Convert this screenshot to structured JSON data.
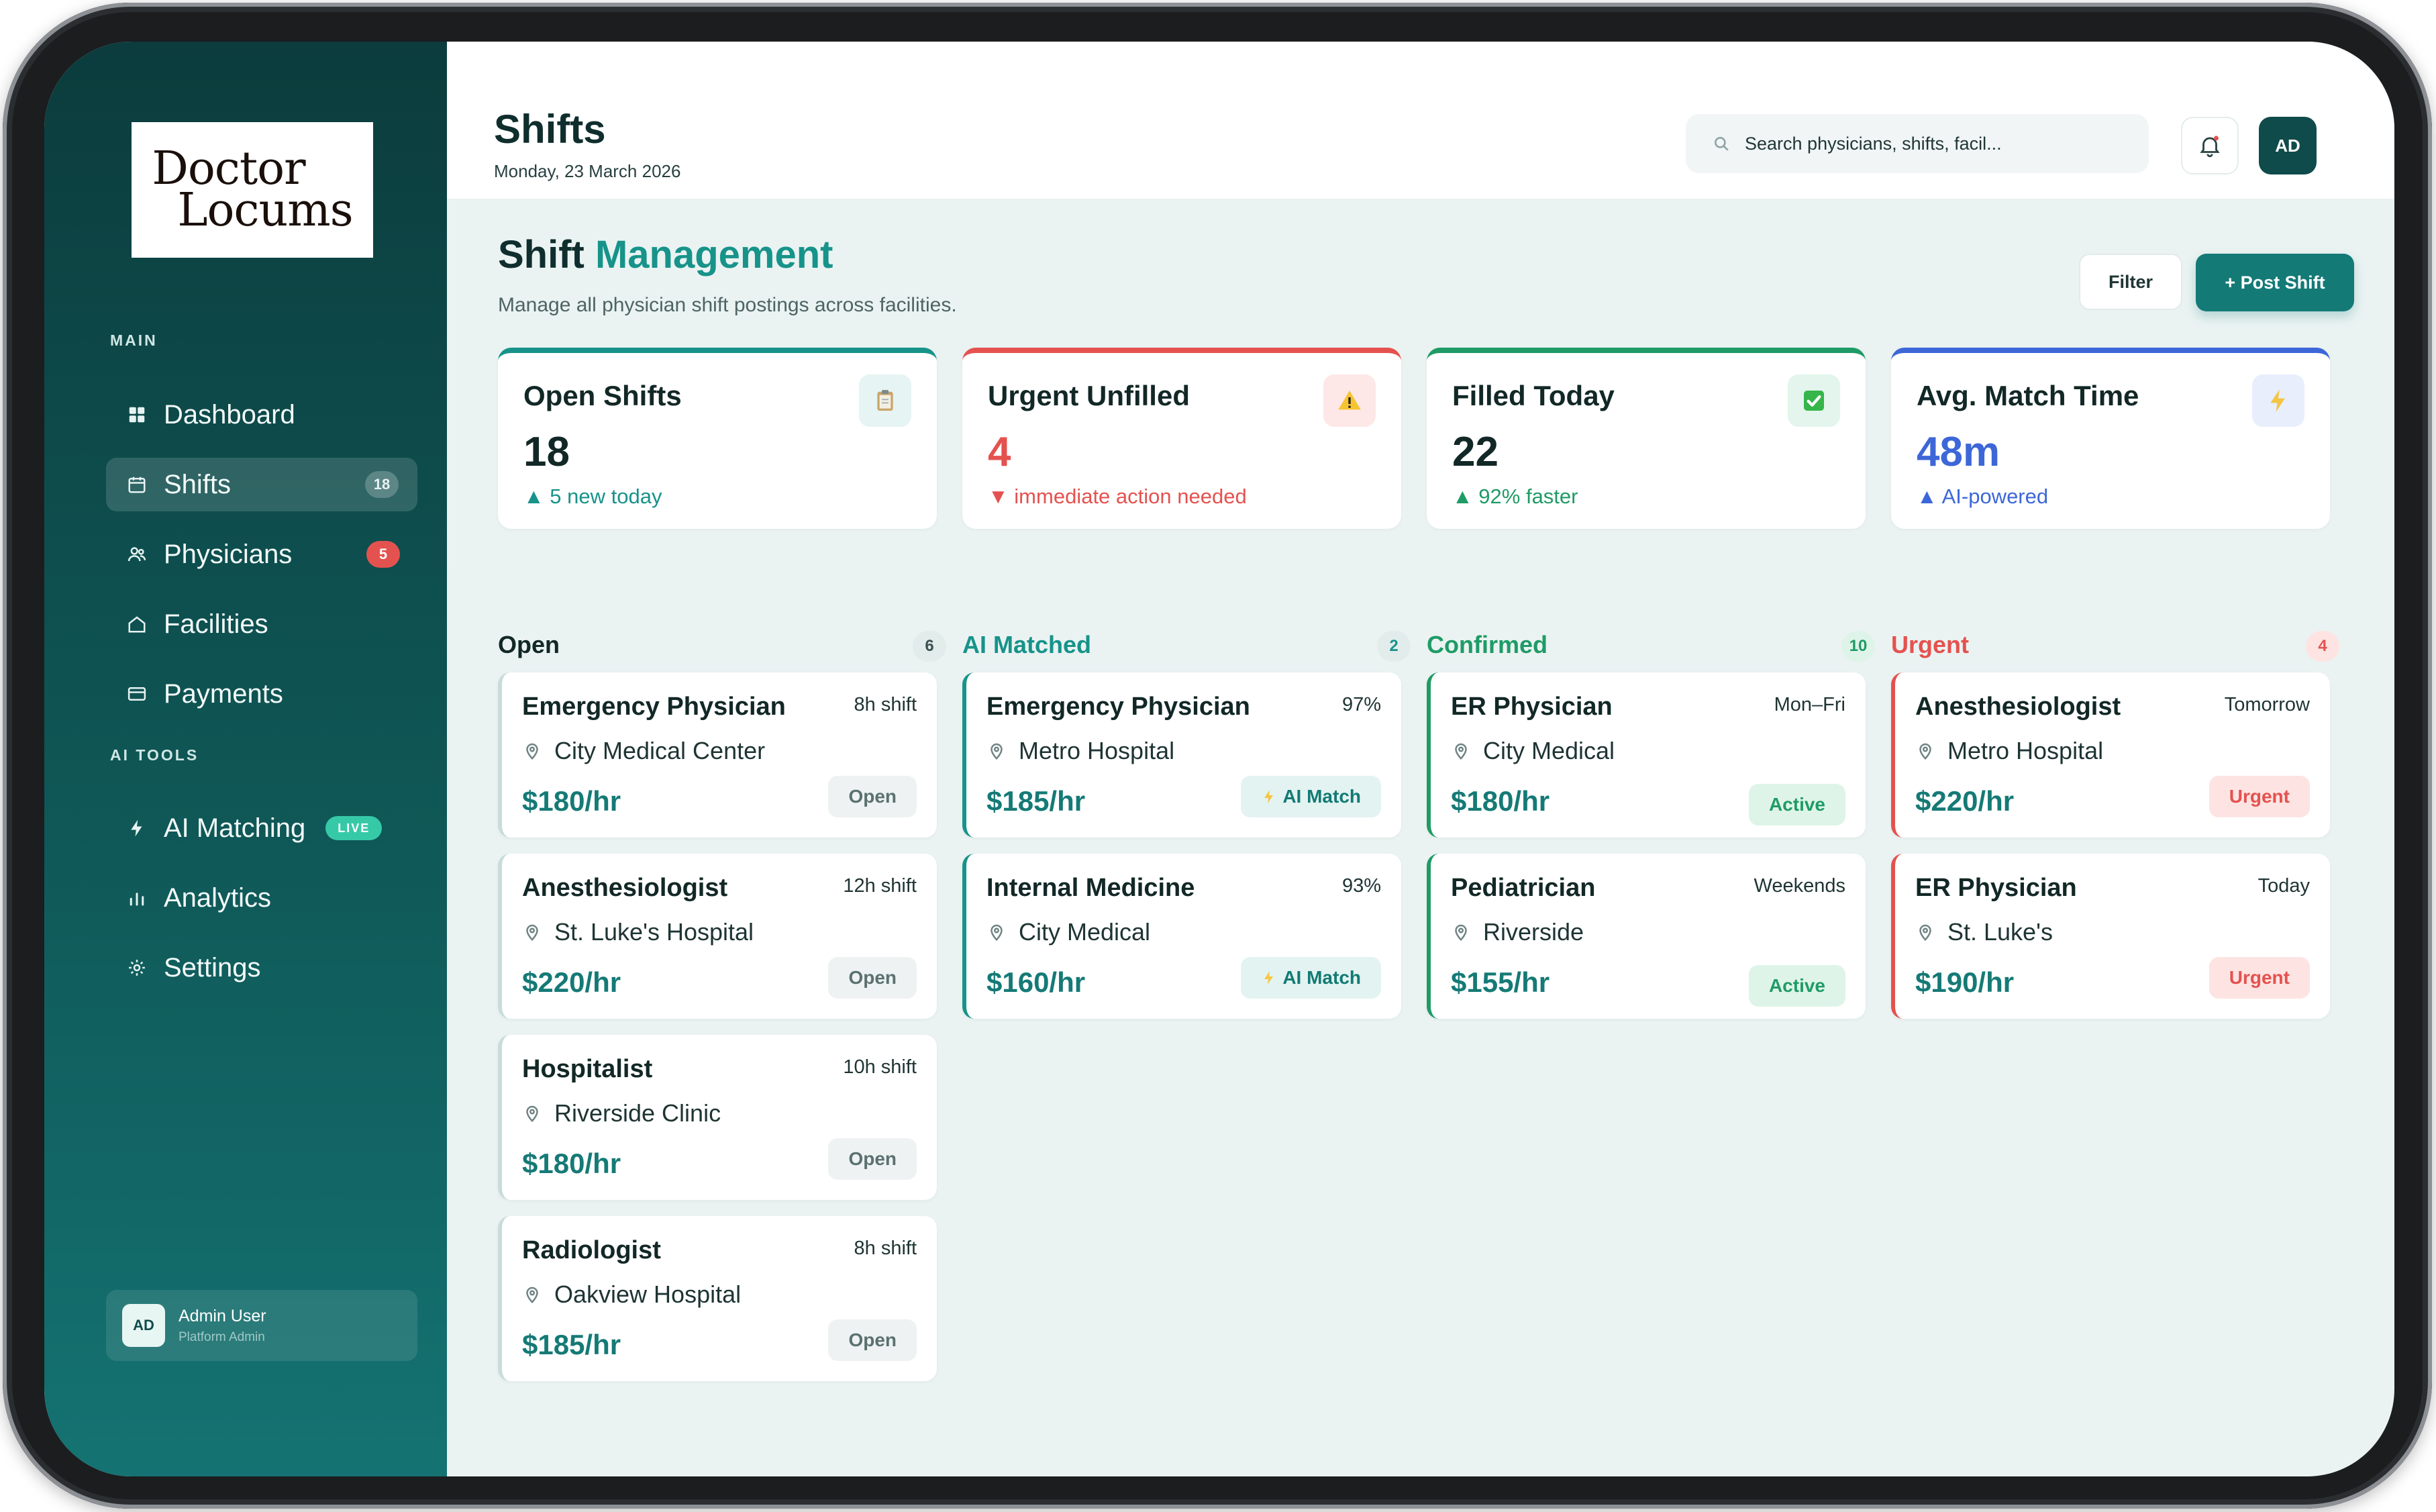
{
  "brand": {
    "logo_line1": "Doctor",
    "logo_line2": "Locums"
  },
  "sidebar": {
    "section_main": "MAIN",
    "section_ai": "AI TOOLS",
    "items": [
      {
        "label": "Dashboard",
        "icon": "grid-icon"
      },
      {
        "label": "Shifts",
        "icon": "calendar-icon",
        "badge": "18"
      },
      {
        "label": "Physicians",
        "icon": "users-icon",
        "badge": "5"
      },
      {
        "label": "Facilities",
        "icon": "home-icon"
      },
      {
        "label": "Payments",
        "icon": "card-icon"
      }
    ],
    "ai_items": [
      {
        "label": "AI Matching",
        "icon": "lightning-icon",
        "badge": "LIVE"
      },
      {
        "label": "Analytics",
        "icon": "bar-chart-icon"
      },
      {
        "label": "Settings",
        "icon": "gear-icon"
      }
    ],
    "user": {
      "initials": "AD",
      "name": "Admin User",
      "role": "Platform Admin"
    }
  },
  "header": {
    "title": "Shifts",
    "date": "Monday, 23 March 2026",
    "search_placeholder": "Search physicians, shifts, facil...",
    "avatar_initials": "AD"
  },
  "page": {
    "title_part1": "Shift",
    "title_part2": "Management",
    "subtitle": "Manage all physician shift postings across facilities.",
    "filter_label": "Filter",
    "post_label": "+ Post Shift"
  },
  "stats": [
    {
      "title": "Open Shifts",
      "value": "18",
      "note": "▲ 5 new today",
      "icon": "clipboard-icon",
      "color": "#17938a"
    },
    {
      "title": "Urgent Unfilled",
      "value": "4",
      "note": "▼ immediate action needed",
      "icon": "warning-icon",
      "color": "#e4524f"
    },
    {
      "title": "Filled Today",
      "value": "22",
      "note": "▲ 92% faster",
      "icon": "check-icon",
      "color": "#1f9b66"
    },
    {
      "title": "Avg. Match Time",
      "value": "48m",
      "note": "▲ AI-powered",
      "icon": "lightning-icon",
      "color": "#3d67d8"
    }
  ],
  "columns": [
    {
      "title": "Open",
      "count": "6",
      "cards": [
        {
          "title": "Emergency Physician",
          "meta": "8h shift",
          "location": "City Medical Center",
          "rate": "$180/hr",
          "pill": "Open"
        },
        {
          "title": "Anesthesiologist",
          "meta": "12h shift",
          "location": "St. Luke's Hospital",
          "rate": "$220/hr",
          "pill": "Open"
        },
        {
          "title": "Hospitalist",
          "meta": "10h shift",
          "location": "Riverside Clinic",
          "rate": "$180/hr",
          "pill": "Open"
        },
        {
          "title": "Radiologist",
          "meta": "8h shift",
          "location": "Oakview Hospital",
          "rate": "$185/hr",
          "pill": "Open"
        }
      ]
    },
    {
      "title": "AI Matched",
      "count": "2",
      "cards": [
        {
          "title": "Emergency Physician",
          "meta": "97%",
          "location": "Metro Hospital",
          "rate": "$185/hr",
          "pill": "AI Match"
        },
        {
          "title": "Internal Medicine",
          "meta": "93%",
          "location": "City Medical",
          "rate": "$160/hr",
          "pill": "AI Match"
        }
      ]
    },
    {
      "title": "Confirmed",
      "count": "10",
      "cards": [
        {
          "title": "ER Physician",
          "meta": "Mon–Fri",
          "location": "City Medical",
          "rate": "$180/hr",
          "pill": "Active"
        },
        {
          "title": "Pediatrician",
          "meta": "Weekends",
          "location": "Riverside",
          "rate": "$155/hr",
          "pill": "Active"
        }
      ]
    },
    {
      "title": "Urgent",
      "count": "4",
      "cards": [
        {
          "title": "Anesthesiologist",
          "meta": "Tomorrow",
          "location": "Metro Hospital",
          "rate": "$220/hr",
          "pill": "Urgent"
        },
        {
          "title": "ER Physician",
          "meta": "Today",
          "location": "St. Luke's",
          "rate": "$190/hr",
          "pill": "Urgent"
        }
      ]
    }
  ]
}
